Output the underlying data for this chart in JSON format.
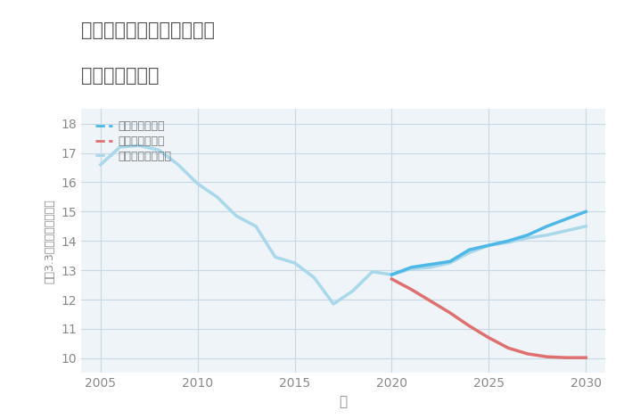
{
  "title_line1": "兵庫県豊岡市日高町祢布の",
  "title_line2": "土地の価格推移",
  "xlabel": "年",
  "ylabel": "平（3.3㎡）単価（万円）",
  "ylim": [
    9.5,
    18.5
  ],
  "xlim": [
    2004,
    2031
  ],
  "yticks": [
    10,
    11,
    12,
    13,
    14,
    15,
    16,
    17,
    18
  ],
  "xticks": [
    2005,
    2010,
    2015,
    2020,
    2025,
    2030
  ],
  "good_scenario": {
    "x": [
      2020,
      2021,
      2022,
      2023,
      2024,
      2025,
      2026,
      2027,
      2028,
      2029,
      2030
    ],
    "y": [
      12.85,
      13.1,
      13.2,
      13.3,
      13.7,
      13.85,
      14.0,
      14.2,
      14.5,
      14.75,
      15.0
    ],
    "color": "#4db8e8",
    "label": "グッドシナリオ",
    "linewidth": 2.5
  },
  "bad_scenario": {
    "x": [
      2020,
      2021,
      2022,
      2023,
      2024,
      2025,
      2026,
      2027,
      2028,
      2029,
      2030
    ],
    "y": [
      12.7,
      12.35,
      11.95,
      11.55,
      11.1,
      10.7,
      10.35,
      10.15,
      10.05,
      10.02,
      10.02
    ],
    "color": "#e07070",
    "label": "バッドシナリオ",
    "linewidth": 2.5
  },
  "normal_scenario": {
    "x": [
      2005,
      2006,
      2007,
      2008,
      2009,
      2010,
      2011,
      2012,
      2013,
      2014,
      2015,
      2016,
      2017,
      2018,
      2019,
      2020,
      2021,
      2022,
      2023,
      2024,
      2025,
      2026,
      2027,
      2028,
      2029,
      2030
    ],
    "y": [
      16.6,
      17.2,
      17.25,
      17.1,
      16.6,
      15.95,
      15.5,
      14.85,
      14.5,
      13.45,
      13.25,
      12.75,
      11.85,
      12.3,
      12.95,
      12.85,
      13.05,
      13.1,
      13.25,
      13.6,
      13.85,
      13.95,
      14.1,
      14.2,
      14.35,
      14.5
    ],
    "color": "#a8d8ea",
    "label": "ノーマルシナリオ",
    "linewidth": 2.5
  },
  "background_color": "#eef4f8",
  "grid_color": "#c8d8e4",
  "title_color": "#555555",
  "axis_color": "#888888",
  "legend_color": "#777777"
}
